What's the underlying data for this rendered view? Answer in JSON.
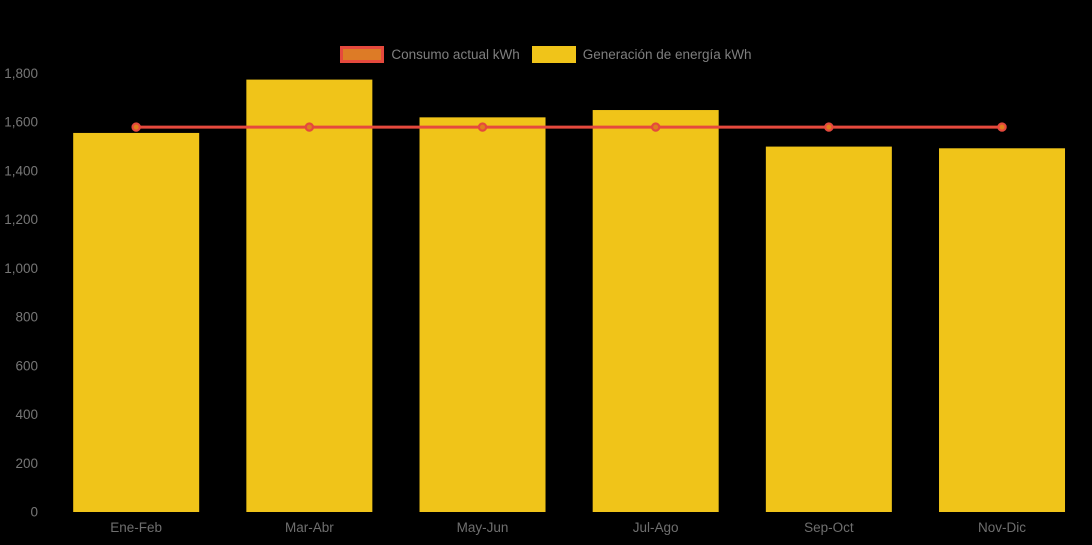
{
  "chart_data": {
    "type": "bar",
    "title": "",
    "xlabel": "",
    "ylabel": "",
    "categories": [
      "Ene-Feb",
      "Mar-Abr",
      "May-Jun",
      "Jul-Ago",
      "Sep-Oct",
      "Nov-Dic"
    ],
    "series": [
      {
        "name": "Consumo actual kWh",
        "kind": "line",
        "color": "#e5493d",
        "swatch_fill": "#dd7b26",
        "marker_fill": "#df7e1e",
        "values": [
          1580,
          1580,
          1580,
          1580,
          1580,
          1580
        ]
      },
      {
        "name": "Generación de energía kWh",
        "kind": "bar",
        "color": "#f0c419",
        "values": [
          1556,
          1775,
          1620,
          1650,
          1500,
          1493
        ]
      }
    ],
    "ylim": [
      0,
      1800
    ],
    "y_ticks": [
      0,
      200,
      400,
      600,
      800,
      1000,
      1200,
      1400,
      1600,
      1800
    ],
    "y_tick_labels": [
      "0",
      "200",
      "400",
      "600",
      "800",
      "1,000",
      "1,200",
      "1,400",
      "1,600",
      "1,800"
    ],
    "grid": false,
    "legend_position": "top-center",
    "background": "#000000"
  }
}
